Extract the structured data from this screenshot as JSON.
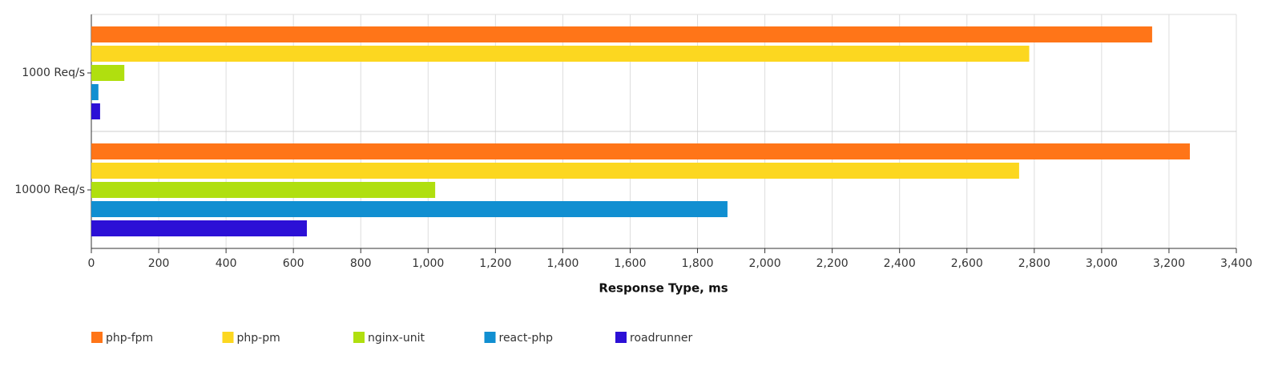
{
  "chart_data": {
    "type": "barh",
    "xlabel": "Response Type, ms",
    "categories": [
      "1000 Req/s",
      "10000 Req/s"
    ],
    "series": [
      {
        "name": "php-fpm",
        "color": "#ff7518",
        "values": [
          3150,
          3262
        ]
      },
      {
        "name": "php-pm",
        "color": "#fcd720",
        "values": [
          2785,
          2755
        ]
      },
      {
        "name": "nginx-unit",
        "color": "#b0df0f",
        "values": [
          98,
          1021
        ]
      },
      {
        "name": "react-php",
        "color": "#118fd1",
        "values": [
          21,
          1889
        ]
      },
      {
        "name": "roadrunner",
        "color": "#2c10d6",
        "values": [
          26,
          640
        ]
      }
    ],
    "xlim": [
      0,
      3400
    ],
    "xticks": [
      0,
      200,
      400,
      600,
      800,
      {
        "value": 1000,
        "label": "1,000"
      },
      {
        "value": 1200,
        "label": "1,200"
      },
      {
        "value": 1400,
        "label": "1,400"
      },
      {
        "value": 1600,
        "label": "1,600"
      },
      {
        "value": 1800,
        "label": "1,800"
      },
      {
        "value": 2000,
        "label": "2,000"
      },
      {
        "value": 2200,
        "label": "2,200"
      },
      {
        "value": 2400,
        "label": "2,400"
      },
      {
        "value": 2600,
        "label": "2,600"
      },
      {
        "value": 2800,
        "label": "2,800"
      },
      {
        "value": 3000,
        "label": "3,000"
      },
      {
        "value": 3200,
        "label": "3,200"
      },
      {
        "value": 3400,
        "label": "3,400"
      }
    ],
    "grid": true,
    "legend": "bottom"
  }
}
